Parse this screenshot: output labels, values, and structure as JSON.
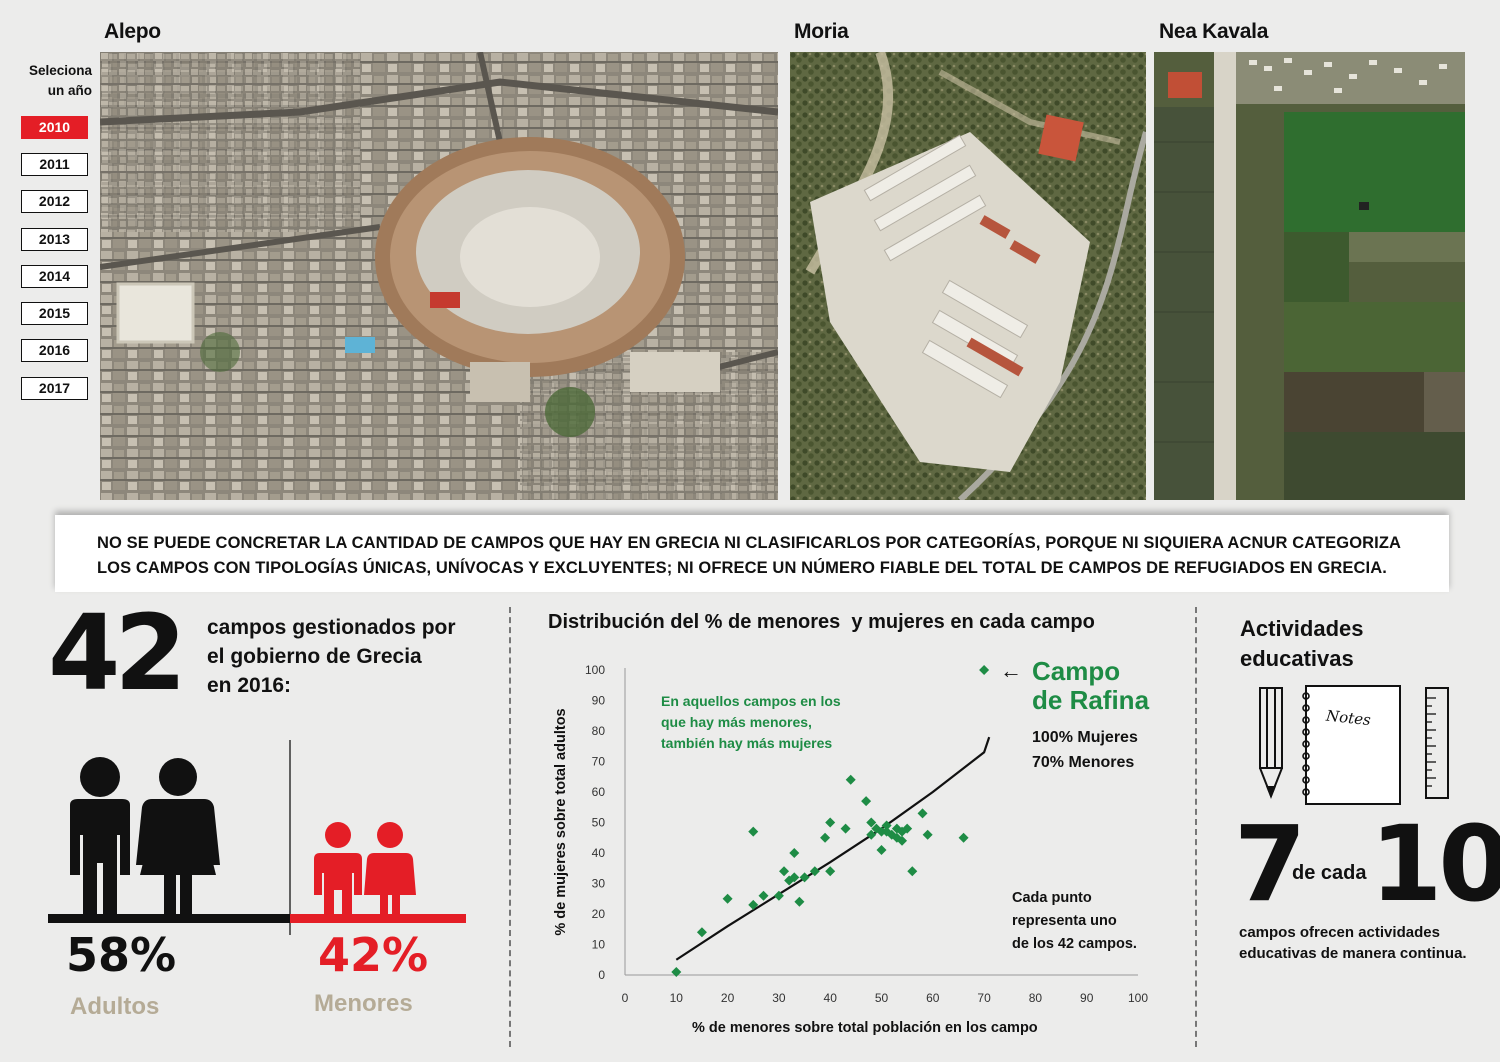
{
  "maps": {
    "alepo_label": "Alepo",
    "moria_label": "Moria",
    "nea_kavala_label": "Nea Kavala"
  },
  "year_selector": {
    "prompt_line1": "Seleciona",
    "prompt_line2": "un año",
    "selected": "2010",
    "years": [
      "2010",
      "2011",
      "2012",
      "2013",
      "2014",
      "2015",
      "2016",
      "2017"
    ]
  },
  "banner": {
    "text": "No se puede concretar la cantidad de campos que hay en Grecia ni clasificarlos por categorías, porque ni siquiera ACNUR categoriza los campos con tipologías únicas, unívocas y excluyentes; ni ofrece un número fiable del total de campos de refugiados en Grecia."
  },
  "left_panel": {
    "big_number": "42",
    "desc_line1": "campos gestionados por",
    "desc_line2": "el gobierno de Grecia",
    "desc_line3": "en 2016:",
    "adults_pct": "58%",
    "adults_label": "Adultos",
    "minors_pct": "42%",
    "minors_label": "Menores"
  },
  "chart_data": {
    "type": "scatter",
    "title": "Distribución del % de menores  y mujeres en cada campo",
    "xlabel": "% de menores sobre total población en los campo",
    "ylabel": "% de mujeres sobre total adultos",
    "xlim": [
      0,
      100
    ],
    "ylim": [
      0,
      100
    ],
    "xticks": [
      "0",
      "10",
      "20",
      "30",
      "40",
      "50",
      "60",
      "70",
      "80",
      "90",
      "100"
    ],
    "yticks": [
      "0",
      "10",
      "20",
      "30",
      "40",
      "50",
      "60",
      "70",
      "80",
      "90",
      "100"
    ],
    "grid": false,
    "point_color": "#1e8c45",
    "trend_color": "#111111",
    "points": [
      [
        10,
        1
      ],
      [
        15,
        14
      ],
      [
        20,
        25
      ],
      [
        25,
        23
      ],
      [
        25,
        47
      ],
      [
        27,
        26
      ],
      [
        30,
        26
      ],
      [
        31,
        34
      ],
      [
        32,
        31
      ],
      [
        33,
        32
      ],
      [
        33,
        40
      ],
      [
        34,
        24
      ],
      [
        35,
        32
      ],
      [
        37,
        34
      ],
      [
        40,
        34
      ],
      [
        39,
        45
      ],
      [
        40,
        50
      ],
      [
        43,
        48
      ],
      [
        44,
        64
      ],
      [
        47,
        57
      ],
      [
        48,
        50
      ],
      [
        48,
        46
      ],
      [
        49,
        48
      ],
      [
        50,
        47
      ],
      [
        50,
        41
      ],
      [
        51,
        49
      ],
      [
        51,
        47
      ],
      [
        52,
        46
      ],
      [
        53,
        48
      ],
      [
        53,
        45
      ],
      [
        54,
        44
      ],
      [
        54,
        47
      ],
      [
        55,
        48
      ],
      [
        56,
        34
      ],
      [
        58,
        53
      ],
      [
        59,
        46
      ],
      [
        66,
        45
      ],
      [
        70,
        100
      ]
    ],
    "trend": [
      [
        10,
        5
      ],
      [
        20,
        16
      ],
      [
        30,
        26.5
      ],
      [
        40,
        37
      ],
      [
        50,
        48
      ],
      [
        60,
        60
      ],
      [
        70,
        73
      ],
      [
        71,
        78
      ]
    ],
    "annotation_rafina_line1": "Campo",
    "annotation_rafina_line2": "de Rafina",
    "annotation_rafina_women": "100% Mujeres",
    "annotation_rafina_minors": "70% Menores",
    "annotation_green_line1": "En aquellos campos en los",
    "annotation_green_line2": "que hay más menores,",
    "annotation_green_line3": "también hay más mujeres",
    "note_line1": "Cada punto",
    "note_line2": "representa uno",
    "note_line3": "de los 42 campos."
  },
  "right_panel": {
    "title_line1": "Actividades",
    "title_line2": "educativas",
    "notebook_text": "Notes",
    "big_left": "7",
    "middle": "de cada",
    "big_right": "10",
    "desc_line1": "campos ofrecen actividades",
    "desc_line2": "educativas de manera continua."
  }
}
